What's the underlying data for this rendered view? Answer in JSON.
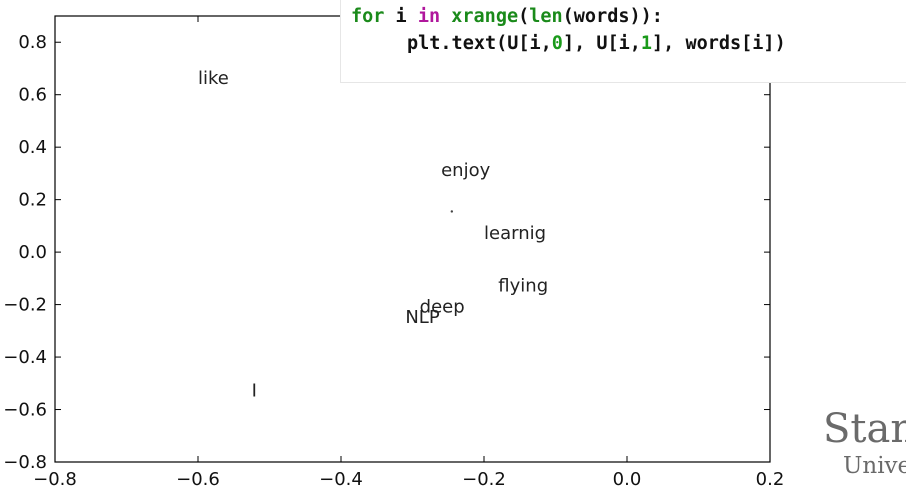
{
  "chart_data": {
    "type": "scatter",
    "xlim": [
      -0.8,
      0.2
    ],
    "ylim": [
      -0.8,
      0.9
    ],
    "x_ticks": [
      -0.8,
      -0.6,
      -0.4,
      -0.2,
      0.0,
      0.2
    ],
    "x_tick_labels": [
      "−0.8",
      "−0.6",
      "−0.4",
      "−0.2",
      "0.0",
      "0.2"
    ],
    "y_ticks": [
      -0.8,
      -0.6,
      -0.4,
      -0.2,
      0.0,
      0.2,
      0.4,
      0.6,
      0.8
    ],
    "y_tick_labels": [
      "−0.8",
      "−0.6",
      "−0.4",
      "−0.2",
      "0.0",
      "0.2",
      "0.4",
      "0.6",
      "0.8"
    ],
    "grid": false,
    "points": [
      {
        "label": "like",
        "x": -0.6,
        "y": 0.64
      },
      {
        "label": "enjoy",
        "x": -0.26,
        "y": 0.29
      },
      {
        "label": "learnig",
        "x": -0.2,
        "y": 0.05
      },
      {
        "label": "flying",
        "x": -0.18,
        "y": -0.15
      },
      {
        "label": "deep",
        "x": -0.29,
        "y": -0.23
      },
      {
        "label": "NLP",
        "x": -0.31,
        "y": -0.27
      },
      {
        "label": "I",
        "x": -0.525,
        "y": -0.55
      }
    ],
    "stray_marker": {
      "x": -0.245,
      "y": 0.155
    }
  },
  "code": {
    "line1": {
      "t1": "for",
      "t2": " i ",
      "t3": "in",
      "t4": " ",
      "t5": "xrange",
      "t6": "(",
      "t7": "len",
      "t8": "(words)):"
    },
    "line2": {
      "t1": "plt.text(U[i,",
      "t2": "0",
      "t3": "], U[i,",
      "t4": "1",
      "t5": "], words[i])"
    }
  },
  "branding": {
    "line1": "Stan",
    "line2": "Unive"
  }
}
